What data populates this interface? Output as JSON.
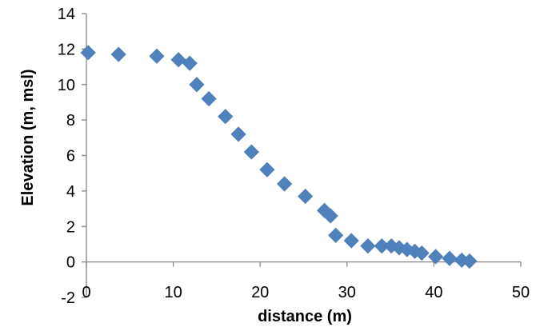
{
  "chart_data": {
    "type": "scatter",
    "title": "",
    "xlabel": "distance (m)",
    "ylabel": "Elevation (m, msl)",
    "xlim": [
      0,
      50
    ],
    "ylim": [
      -2,
      14
    ],
    "xticks": [
      0,
      10,
      20,
      30,
      40,
      50
    ],
    "yticks": [
      -2,
      0,
      2,
      4,
      6,
      8,
      10,
      12,
      14
    ],
    "grid": false,
    "legend": "none",
    "marker": "diamond",
    "marker_color": "#4F81BD",
    "series": [
      {
        "x": [
          0.2,
          3.7,
          8.1,
          10.6,
          11.9,
          12.7,
          14.1,
          16.0,
          17.5,
          19.0,
          20.8,
          22.8,
          25.2,
          27.4,
          28.1,
          28.7,
          30.5,
          32.4,
          34.0,
          35.1,
          36.0,
          36.9,
          37.8,
          38.6,
          40.2,
          41.8,
          43.2,
          44.1
        ],
        "y": [
          11.8,
          11.7,
          11.6,
          11.4,
          11.2,
          10.0,
          9.2,
          8.2,
          7.2,
          6.2,
          5.2,
          4.4,
          3.7,
          2.9,
          2.6,
          1.5,
          1.2,
          0.9,
          0.9,
          0.9,
          0.8,
          0.7,
          0.6,
          0.5,
          0.3,
          0.2,
          0.1,
          0.05
        ]
      }
    ]
  }
}
